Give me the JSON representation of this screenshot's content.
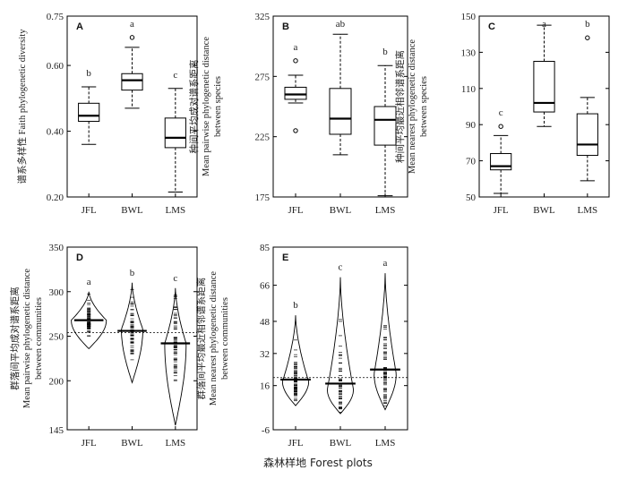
{
  "figure": {
    "xlabel": "森林样地 Forest plots"
  },
  "chart_data": [
    {
      "panel": "A",
      "type": "box",
      "categories": [
        "JFL",
        "BWL",
        "LMS"
      ],
      "ylabel_cn": "谱系多样性",
      "ylabel_en": "Faith phylogenetic diversity",
      "ylabel_lines": [
        "谱系多样性 Faith phylogenetic diversity"
      ],
      "ylim": [
        0.2,
        0.75
      ],
      "yticks": [
        "0.20",
        "0.40",
        "0.60",
        "0.75"
      ],
      "ytick_values": [
        0.2,
        0.4,
        0.6,
        0.75
      ],
      "boxes": [
        {
          "whisker_low": 0.36,
          "q1": 0.43,
          "median": 0.447,
          "q3": 0.485,
          "whisker_high": 0.535,
          "outliers": []
        },
        {
          "whisker_low": 0.47,
          "q1": 0.525,
          "median": 0.555,
          "q3": 0.575,
          "whisker_high": 0.655,
          "outliers": [
            0.685
          ]
        },
        {
          "whisker_low": 0.215,
          "q1": 0.35,
          "median": 0.38,
          "q3": 0.44,
          "whisker_high": 0.53,
          "outliers": []
        }
      ],
      "letters": [
        "b",
        "a",
        "c"
      ]
    },
    {
      "panel": "B",
      "type": "box",
      "categories": [
        "JFL",
        "BWL",
        "LMS"
      ],
      "ylabel_cn": "种间平均成对谱系距离",
      "ylabel_en": "Mean pairwise phylogenetic distance between species",
      "ylabel_lines": [
        "种间平均成对谱系距离",
        "Mean pairwise phylogenetic distance",
        "between species"
      ],
      "ylim": [
        175,
        325
      ],
      "yticks": [
        "175",
        "225",
        "275",
        "325"
      ],
      "ytick_values": [
        175,
        225,
        275,
        325
      ],
      "boxes": [
        {
          "whisker_low": 253,
          "q1": 256,
          "median": 260,
          "q3": 266,
          "whisker_high": 276,
          "outliers": [
            288,
            230
          ]
        },
        {
          "whisker_low": 210,
          "q1": 227,
          "median": 240,
          "q3": 265,
          "whisker_high": 310,
          "outliers": []
        },
        {
          "whisker_low": 176,
          "q1": 218,
          "median": 239,
          "q3": 250,
          "whisker_high": 284,
          "outliers": []
        }
      ],
      "letters": [
        "a",
        "ab",
        "b"
      ]
    },
    {
      "panel": "C",
      "type": "box",
      "categories": [
        "JFL",
        "BWL",
        "LMS"
      ],
      "ylabel_cn": "种间平均最近相邻谱系距离",
      "ylabel_en": "Mean nearest phylogenetic distance between species",
      "ylabel_lines": [
        "种间平均最近相邻谱系距离",
        "Mean nearest phylogenetic distance",
        "between species"
      ],
      "ylim": [
        50,
        150
      ],
      "yticks": [
        "50",
        "70",
        "90",
        "110",
        "130",
        "150"
      ],
      "ytick_values": [
        50,
        70,
        90,
        110,
        130,
        150
      ],
      "boxes": [
        {
          "whisker_low": 52,
          "q1": 65,
          "median": 67,
          "q3": 74,
          "whisker_high": 84,
          "outliers": [
            89
          ]
        },
        {
          "whisker_low": 89,
          "q1": 97,
          "median": 102,
          "q3": 125,
          "whisker_high": 145,
          "outliers": []
        },
        {
          "whisker_low": 59,
          "q1": 73,
          "median": 79,
          "q3": 96,
          "whisker_high": 105,
          "outliers": [
            138
          ]
        }
      ],
      "letters": [
        "c",
        "a",
        "b"
      ]
    },
    {
      "panel": "D",
      "type": "violin",
      "categories": [
        "JFL",
        "BWL",
        "LMS"
      ],
      "ylabel_cn": "群落间平均成对谱系距离",
      "ylabel_en": "Mean pairwise phylogenetic distance between communities",
      "ylabel_lines": [
        "群落间平均成对谱系距离",
        "Mean pairwise phylogenetic distance",
        "between communities"
      ],
      "ylim": [
        145,
        350
      ],
      "yticks": [
        "145",
        "200",
        "250",
        "300",
        "350"
      ],
      "ytick_values": [
        145,
        200,
        250,
        300,
        350
      ],
      "overall_mean": 254,
      "violins": [
        {
          "min": 236,
          "max": 300,
          "mean": 268,
          "mode": 268,
          "width": 0.9
        },
        {
          "min": 198,
          "max": 310,
          "mean": 256,
          "mode": 258,
          "width": 0.55
        },
        {
          "min": 150,
          "max": 304,
          "mean": 242,
          "mode": 242,
          "width": 0.55
        }
      ],
      "letters": [
        "a",
        "b",
        "c"
      ]
    },
    {
      "panel": "E",
      "type": "violin",
      "categories": [
        "JFL",
        "BWL",
        "LMS"
      ],
      "ylabel_cn": "群落间平均最近相邻谱系距离",
      "ylabel_en": "Mean nearest phylogenetic distance between communities",
      "ylabel_lines": [
        "群落间平均最近相邻谱系距离",
        "Mean nearest phylogenetic distance",
        "between communities"
      ],
      "ylim": [
        -6,
        85
      ],
      "yticks": [
        "-6",
        "16",
        "32",
        "48",
        "66",
        "85"
      ],
      "ytick_values": [
        -6,
        16,
        32,
        48,
        66,
        85
      ],
      "overall_mean": 20,
      "violins": [
        {
          "min": 6,
          "max": 51,
          "mean": 19,
          "mode": 18,
          "width": 0.65
        },
        {
          "min": 2,
          "max": 70,
          "mean": 17,
          "mode": 14,
          "width": 0.65
        },
        {
          "min": 4,
          "max": 72,
          "mean": 24,
          "mode": 22,
          "width": 0.55
        }
      ],
      "letters": [
        "b",
        "c",
        "a"
      ]
    }
  ]
}
